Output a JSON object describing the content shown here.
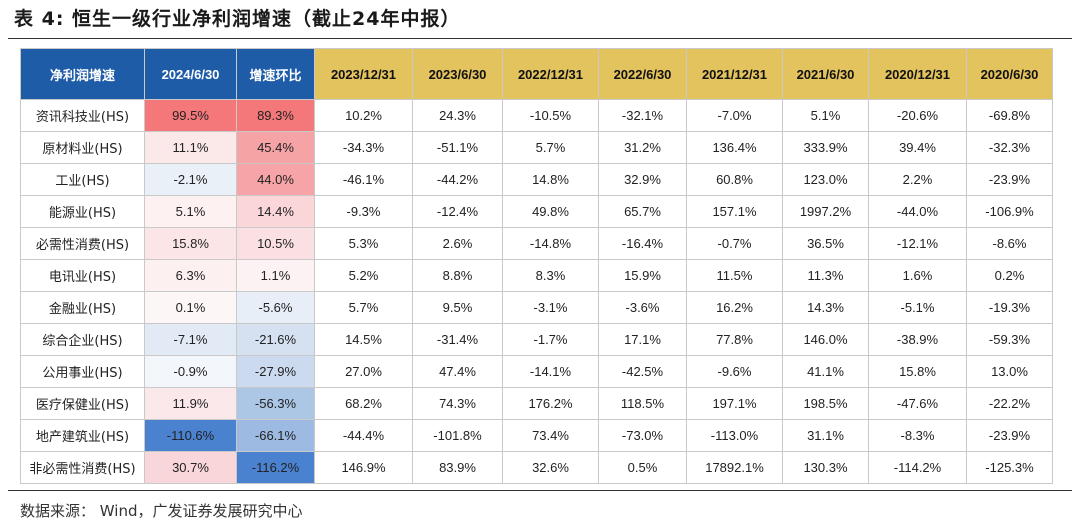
{
  "title": "表 4: 恒生一级行业净利润增速（截止24年中报）",
  "source": "数据来源：  Wind，广发证券发展研究中心",
  "table": {
    "headers": [
      "净利润增速",
      "2024/6/30",
      "增速环比",
      "2023/12/31",
      "2023/6/30",
      "2022/12/31",
      "2022/6/30",
      "2021/12/31",
      "2021/6/30",
      "2020/12/31",
      "2020/6/30"
    ],
    "rows": [
      [
        "资讯科技业(HS)",
        "99.5%",
        "89.3%",
        "10.2%",
        "24.3%",
        "-10.5%",
        "-32.1%",
        "-7.0%",
        "5.1%",
        "-20.6%",
        "-69.8%"
      ],
      [
        "原材料业(HS)",
        "11.1%",
        "45.4%",
        "-34.3%",
        "-51.1%",
        "5.7%",
        "31.2%",
        "136.4%",
        "333.9%",
        "39.4%",
        "-32.3%"
      ],
      [
        "工业(HS)",
        "-2.1%",
        "44.0%",
        "-46.1%",
        "-44.2%",
        "14.8%",
        "32.9%",
        "60.8%",
        "123.0%",
        "2.2%",
        "-23.9%"
      ],
      [
        "能源业(HS)",
        "5.1%",
        "14.4%",
        "-9.3%",
        "-12.4%",
        "49.8%",
        "65.7%",
        "157.1%",
        "1997.2%",
        "-44.0%",
        "-106.9%"
      ],
      [
        "必需性消费(HS)",
        "15.8%",
        "10.5%",
        "5.3%",
        "2.6%",
        "-14.8%",
        "-16.4%",
        "-0.7%",
        "36.5%",
        "-12.1%",
        "-8.6%"
      ],
      [
        "电讯业(HS)",
        "6.3%",
        "1.1%",
        "5.2%",
        "8.8%",
        "8.3%",
        "15.9%",
        "11.5%",
        "11.3%",
        "1.6%",
        "0.2%"
      ],
      [
        "金融业(HS)",
        "0.1%",
        "-5.6%",
        "5.7%",
        "9.5%",
        "-3.1%",
        "-3.6%",
        "16.2%",
        "14.3%",
        "-5.1%",
        "-19.3%"
      ],
      [
        "综合企业(HS)",
        "-7.1%",
        "-21.6%",
        "14.5%",
        "-31.4%",
        "-1.7%",
        "17.1%",
        "77.8%",
        "146.0%",
        "-38.9%",
        "-59.3%"
      ],
      [
        "公用事业(HS)",
        "-0.9%",
        "-27.9%",
        "27.0%",
        "47.4%",
        "-14.1%",
        "-42.5%",
        "-9.6%",
        "41.1%",
        "15.8%",
        "13.0%"
      ],
      [
        "医疗保健业(HS)",
        "11.9%",
        "-56.3%",
        "68.2%",
        "74.3%",
        "176.2%",
        "118.5%",
        "197.1%",
        "198.5%",
        "-47.6%",
        "-22.2%"
      ],
      [
        "地产建筑业(HS)",
        "-110.6%",
        "-66.1%",
        "-44.4%",
        "-101.8%",
        "73.4%",
        "-73.0%",
        "-113.0%",
        "31.1%",
        "-8.3%",
        "-23.9%"
      ],
      [
        "非必需性消费(HS)",
        "30.7%",
        "-116.2%",
        "146.9%",
        "83.9%",
        "32.6%",
        "0.5%",
        "17892.1%",
        "130.3%",
        "-114.2%",
        "-125.3%"
      ]
    ],
    "heat_colors": {
      "col_2024": [
        "#f4787a",
        "#fbe9ea",
        "#eaf0f8",
        "#fdf1f2",
        "#fbe5e7",
        "#fdf0f1",
        "#fdf6f7",
        "#e2eaf5",
        "#f3f6fb",
        "#fbe8ea",
        "#4a82cf",
        "#f9d6d9"
      ],
      "col_qoq": [
        "#f4787a",
        "#f6a3a6",
        "#f6a4a7",
        "#fad6d9",
        "#fbe0e3",
        "#fdf2f3",
        "#e7eef7",
        "#d5e1f1",
        "#cbdaee",
        "#acc6e6",
        "#9dbbe2",
        "#4a82cf"
      ]
    }
  }
}
